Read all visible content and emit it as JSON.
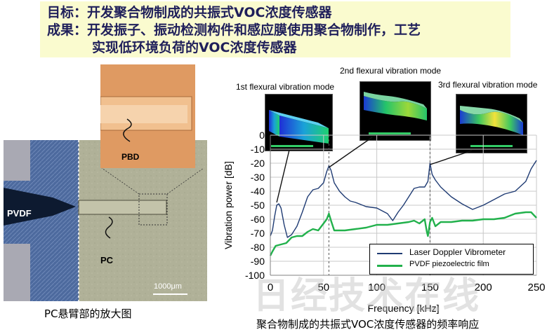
{
  "goal": {
    "line1": "目标：开发聚合物制成的共振式VOC浓度传感器",
    "line2": "成果：开发振子、振动检测构件和感应膜使用聚合物制作，工艺",
    "line3": "实现低环境负荷的VOC浓度传感器"
  },
  "micrograph": {
    "label_pbd": "PBD",
    "label_pvdf": "PVDF",
    "label_pc": "PC",
    "scale_bar": "1000μm",
    "caption": "PC悬臂部的放大图"
  },
  "modes": {
    "mode1": "1st flexural vibration mode",
    "mode2": "2nd flexural vibration mode",
    "mode3": "3rd flexural vibration mode"
  },
  "chart_caption": "聚合物制成的共振式VOC浓度传感器的频率响应",
  "watermark": "日经技术在线",
  "chart_data": {
    "type": "line",
    "xlabel": "Frequency [kHz]",
    "ylabel": "Vibration power [dB]",
    "xlim": [
      0,
      250
    ],
    "ylim": [
      -100,
      0
    ],
    "xticks": [
      0,
      50,
      100,
      150,
      200,
      250
    ],
    "yticks": [
      0,
      -10,
      -20,
      -30,
      -40,
      -50,
      -60,
      -70,
      -80,
      -90,
      -100
    ],
    "grid": true,
    "legend_position": "bottom-right",
    "mode_markers_khz": [
      55,
      150
    ],
    "series": [
      {
        "name": "Laser Doppler Vibrometer",
        "color": "#1f3b73",
        "x": [
          0,
          2,
          4,
          6,
          8,
          10,
          13,
          16,
          20,
          25,
          30,
          35,
          40,
          45,
          50,
          53,
          55,
          57,
          60,
          65,
          70,
          75,
          80,
          90,
          100,
          110,
          115,
          120,
          125,
          130,
          135,
          140,
          145,
          148,
          150,
          152,
          155,
          160,
          170,
          180,
          190,
          200,
          210,
          220,
          230,
          240,
          245,
          250
        ],
        "y": [
          -72,
          -68,
          -58,
          -50,
          -49,
          -52,
          -64,
          -73,
          -71,
          -65,
          -55,
          -44,
          -39,
          -38,
          -34,
          -26,
          -22,
          -25,
          -34,
          -40,
          -44,
          -47,
          -48,
          -51,
          -52,
          -56,
          -61,
          -55,
          -50,
          -44,
          -38,
          -37,
          -37,
          -33,
          -20,
          -28,
          -32,
          -37,
          -44,
          -49,
          -53,
          -50,
          -46,
          -42,
          -40,
          -33,
          -24,
          -18
        ]
      },
      {
        "name": "PVDF piezoelectric film",
        "color": "#22b14c",
        "x": [
          0,
          2,
          5,
          10,
          15,
          20,
          25,
          30,
          35,
          40,
          45,
          50,
          53,
          55,
          57,
          60,
          65,
          70,
          80,
          90,
          100,
          110,
          120,
          130,
          135,
          140,
          145,
          147,
          148,
          150,
          152,
          155,
          160,
          170,
          180,
          190,
          200,
          210,
          220,
          230,
          240,
          245,
          250
        ],
        "y": [
          -86,
          -83,
          -79,
          -78,
          -77,
          -73,
          -72,
          -72,
          -69,
          -67,
          -68,
          -63,
          -60,
          -56,
          -61,
          -68,
          -68,
          -68,
          -67,
          -66,
          -64,
          -64,
          -63,
          -62,
          -61,
          -63,
          -60,
          -69,
          -72,
          -62,
          -59,
          -65,
          -62,
          -62,
          -61,
          -61,
          -60,
          -60,
          -59,
          -56,
          -55,
          -55,
          -59
        ]
      }
    ]
  }
}
